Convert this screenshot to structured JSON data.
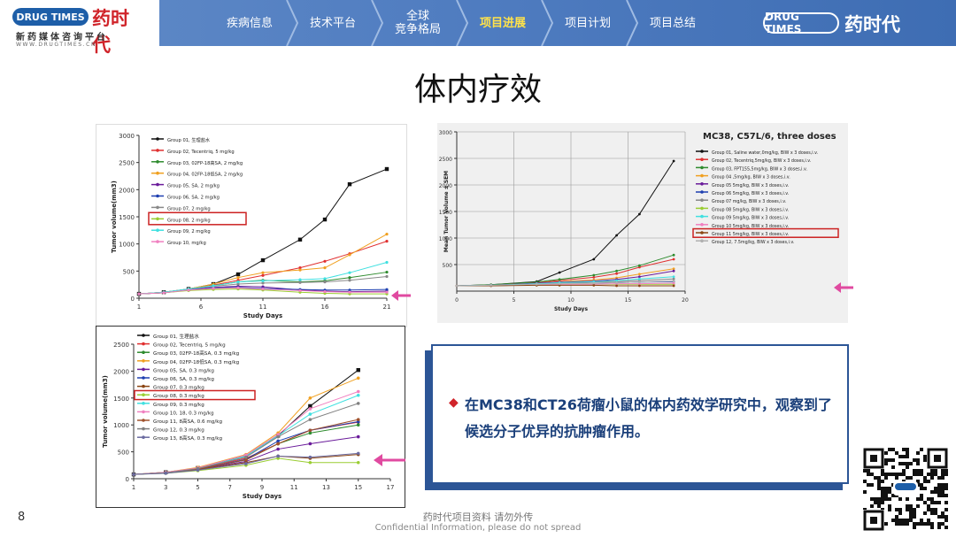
{
  "header": {
    "logo_pill": "DRUG TIMES",
    "logo_cn": "药时代",
    "logo_sub": "新药媒体咨询平台",
    "logo_url": "WWW.DRUGTIMES.CN",
    "tabs": [
      {
        "label": "疾病信息"
      },
      {
        "label": "技术平台"
      },
      {
        "label": "全球\n竞争格局"
      },
      {
        "label": "项目进展"
      },
      {
        "label": "项目计划"
      },
      {
        "label": "项目总结"
      }
    ],
    "active_tab": 3,
    "right_logo_pill": "DRUG TIMES",
    "right_logo_cn": "药时代"
  },
  "title": "体内疗效",
  "callout": {
    "text": "在MC38和CT26荷瘤小鼠的体内药效学研究中，观察到了候选分子优异的抗肿瘤作用。"
  },
  "footer": {
    "page_number": "8",
    "line1": "药时代项目资料 请勿外传",
    "line2": "Confidential Information, please do not spread"
  },
  "colors": {
    "nav": "#4f7cc0",
    "active_tab": "#ffe24a",
    "callout_border": "#2c5596",
    "highlight": "#cc2222",
    "arrow": "#e04aa0"
  },
  "chart_data": [
    {
      "type": "line",
      "title": "",
      "xlabel": "Study Days",
      "ylabel": "Tumor volume(mm3)",
      "x_ticks": [
        1,
        6,
        11,
        16,
        21
      ],
      "y_ticks": [
        0,
        500,
        1000,
        1500,
        2000,
        2500,
        3000
      ],
      "xlim": [
        1,
        21
      ],
      "ylim": [
        0,
        3000
      ],
      "legend_position": "top-left",
      "highlighted_series": 7,
      "x": [
        1,
        3,
        5,
        7,
        9,
        11,
        14,
        16,
        18,
        21
      ],
      "series": [
        {
          "name": "Group 01, 生理盐水",
          "color": "#111111",
          "marker": "square",
          "values": [
            80,
            110,
            170,
            260,
            440,
            700,
            1080,
            1450,
            2100,
            2380
          ]
        },
        {
          "name": "Group 02, Tecentriq, 5 mg/kg",
          "color": "#e03030",
          "values": [
            80,
            100,
            160,
            240,
            330,
            420,
            560,
            680,
            820,
            1050
          ]
        },
        {
          "name": "Group 03, 02FP-18高SA, 2 mg/kg",
          "color": "#2e8b2e",
          "values": [
            80,
            100,
            160,
            230,
            300,
            330,
            300,
            320,
            380,
            480
          ]
        },
        {
          "name": "Group 04, 02FP-18低SA, 2 mg/kg",
          "color": "#f0a020",
          "values": [
            80,
            110,
            170,
            260,
            380,
            470,
            520,
            560,
            800,
            1180
          ]
        },
        {
          "name": "Group 05, SA, 2 mg/kg",
          "color": "#6a1b9a",
          "values": [
            80,
            100,
            160,
            200,
            220,
            210,
            150,
            130,
            120,
            130
          ]
        },
        {
          "name": "Group 06, SA, 2 mg/kg",
          "color": "#1e3fb0",
          "values": [
            80,
            100,
            150,
            190,
            200,
            180,
            160,
            150,
            150,
            160
          ]
        },
        {
          "name": "Group 07, 2 mg/kg",
          "color": "#888888",
          "values": [
            80,
            110,
            170,
            220,
            260,
            280,
            290,
            300,
            330,
            400
          ]
        },
        {
          "name": "Group 08, 2 mg/kg",
          "color": "#9acd32",
          "values": [
            80,
            100,
            140,
            160,
            170,
            150,
            110,
            90,
            80,
            80
          ]
        },
        {
          "name": "Group 09, 2 mg/kg",
          "color": "#40e0e0",
          "values": [
            80,
            110,
            170,
            230,
            300,
            320,
            340,
            360,
            470,
            660
          ]
        },
        {
          "name": "Group 10, mg/kg",
          "color": "#f080c0",
          "values": [
            80,
            100,
            150,
            180,
            190,
            170,
            140,
            120,
            110,
            110
          ]
        }
      ]
    },
    {
      "type": "line",
      "title": "MC38, C57L/6, three doses",
      "xlabel": "Study Days",
      "ylabel": "Mean Tumor Volume ± SEM",
      "x_ticks": [
        0,
        5,
        10,
        15,
        20
      ],
      "y_ticks": [
        500,
        1000,
        1500,
        2000,
        2500,
        3000
      ],
      "xlim": [
        0,
        20
      ],
      "ylim": [
        0,
        3000
      ],
      "legend_position": "right",
      "highlighted_series": 10,
      "x": [
        0,
        3,
        7,
        9,
        12,
        14,
        16,
        19
      ],
      "series": [
        {
          "name": "Group 01, Saline water,0mg/kg, BIW x 3  doses,i.v.",
          "color": "#111111",
          "values": [
            100,
            120,
            180,
            350,
            600,
            1050,
            1450,
            2450
          ]
        },
        {
          "name": "Group 02, Tecentriq,5mg/kg, BIW x 3  doses,i.v.",
          "color": "#e03030",
          "values": [
            100,
            110,
            160,
            200,
            260,
            330,
            450,
            600
          ]
        },
        {
          "name": "Group 03, FPT155,5mg/kg, BIW x 3  doses,i.v.",
          "color": "#2e8b2e",
          "values": [
            100,
            120,
            170,
            220,
            300,
            380,
            480,
            680
          ]
        },
        {
          "name": "Group 04 ,5mg/kg, BIW x 3  doses,i.v.",
          "color": "#f0a020",
          "values": [
            100,
            110,
            150,
            180,
            210,
            250,
            320,
            420
          ]
        },
        {
          "name": "Group 05 5mg/kg, BIW x 3  doses,i.v.",
          "color": "#6a1b9a",
          "values": [
            100,
            110,
            150,
            170,
            190,
            220,
            270,
            380
          ]
        },
        {
          "name": "Group 06 5mg/kg, BIW x 3  doses,i.v.",
          "color": "#1e3fb0",
          "values": [
            100,
            110,
            140,
            150,
            150,
            160,
            170,
            180
          ]
        },
        {
          "name": "Group 07 mg/kg, BIW x 3  doses,i.v.",
          "color": "#888888",
          "values": [
            100,
            110,
            140,
            150,
            170,
            180,
            200,
            230
          ]
        },
        {
          "name": "Group 08 5mg/kg, BIW x 3  doses,i.v.",
          "color": "#9acd32",
          "values": [
            100,
            100,
            120,
            130,
            130,
            130,
            130,
            130
          ]
        },
        {
          "name": "Group 09 5mg/kg, BIW x 3  doses,i.v.",
          "color": "#40e0e0",
          "values": [
            100,
            110,
            140,
            160,
            180,
            200,
            230,
            270
          ]
        },
        {
          "name": "Group 10 5mg/kg, BIW x 3  doses,i.v.",
          "color": "#f080c0",
          "values": [
            100,
            100,
            120,
            130,
            130,
            140,
            140,
            150
          ]
        },
        {
          "name": "Group 11 5mg/kg, BIW x 3  doses,i.v.",
          "color": "#8b4513",
          "values": [
            100,
            100,
            110,
            110,
            110,
            100,
            100,
            100
          ]
        },
        {
          "name": "Group 12, 7.5mg/kg, BIW x 3  doses,i.v.",
          "color": "#b0b0b0",
          "values": [
            100,
            110,
            130,
            140,
            150,
            160,
            170,
            190
          ]
        }
      ]
    },
    {
      "type": "line",
      "title": "",
      "xlabel": "Study Days",
      "ylabel": "Tumor volume(mm3)",
      "x_ticks": [
        1,
        3,
        5,
        7,
        9,
        11,
        13,
        15,
        17
      ],
      "y_ticks": [
        0,
        500,
        1000,
        1500,
        2000,
        2500
      ],
      "xlim": [
        1,
        17
      ],
      "ylim": [
        0,
        2500
      ],
      "legend_position": "top-left",
      "highlighted_series": 7,
      "x": [
        1,
        3,
        5,
        8,
        10,
        12,
        15
      ],
      "series": [
        {
          "name": "Group 01, 生理盐水",
          "color": "#111111",
          "marker": "square",
          "values": [
            80,
            120,
            200,
            420,
            800,
            1350,
            2020
          ]
        },
        {
          "name": "Group 02, Tecentriq, 5 mg/kg",
          "color": "#e03030",
          "values": [
            80,
            110,
            190,
            380,
            650,
            900,
            1050
          ]
        },
        {
          "name": "Group 03, 02FP-18高SA, 0.3 mg/kg",
          "color": "#2e8b2e",
          "values": [
            80,
            110,
            180,
            350,
            650,
            850,
            1000
          ]
        },
        {
          "name": "Group 04, 02FP-18低SA, 0.3 mg/kg",
          "color": "#f0a020",
          "values": [
            80,
            120,
            210,
            450,
            850,
            1500,
            1870
          ]
        },
        {
          "name": "Group 05, SA, 0.3 mg/kg",
          "color": "#6a1b9a",
          "values": [
            80,
            110,
            180,
            320,
            550,
            650,
            780
          ]
        },
        {
          "name": "Group 06, SA, 0.3 mg/kg",
          "color": "#1e3fb0",
          "values": [
            80,
            110,
            180,
            360,
            700,
            900,
            1060
          ]
        },
        {
          "name": "Group 07, 0.3 mg/kg",
          "color": "#8b4513",
          "values": [
            80,
            110,
            170,
            300,
            420,
            380,
            450
          ]
        },
        {
          "name": "Group 08, 0.3 mg/kg",
          "color": "#9acd32",
          "values": [
            80,
            100,
            150,
            250,
            380,
            300,
            300
          ]
        },
        {
          "name": "Group 09, 0.3 mg/kg",
          "color": "#40e0e0",
          "values": [
            80,
            110,
            190,
            420,
            800,
            1200,
            1550
          ]
        },
        {
          "name": "Group 10, 18, 0.3 mg/kg",
          "color": "#f080c0",
          "values": [
            80,
            120,
            200,
            440,
            820,
            1300,
            1620
          ]
        },
        {
          "name": "Group 11, 8高SA, 0.6 mg/kg",
          "color": "#a0522d",
          "values": [
            80,
            110,
            180,
            350,
            650,
            900,
            1100
          ]
        },
        {
          "name": "Group 12, 0.3 mg/kg",
          "color": "#808080",
          "values": [
            80,
            110,
            190,
            400,
            780,
            1100,
            1400
          ]
        },
        {
          "name": "Group 13, 8高SA, 0.3 mg/kg",
          "color": "#6a6aa0",
          "values": [
            80,
            100,
            160,
            280,
            420,
            400,
            470
          ]
        }
      ]
    }
  ]
}
